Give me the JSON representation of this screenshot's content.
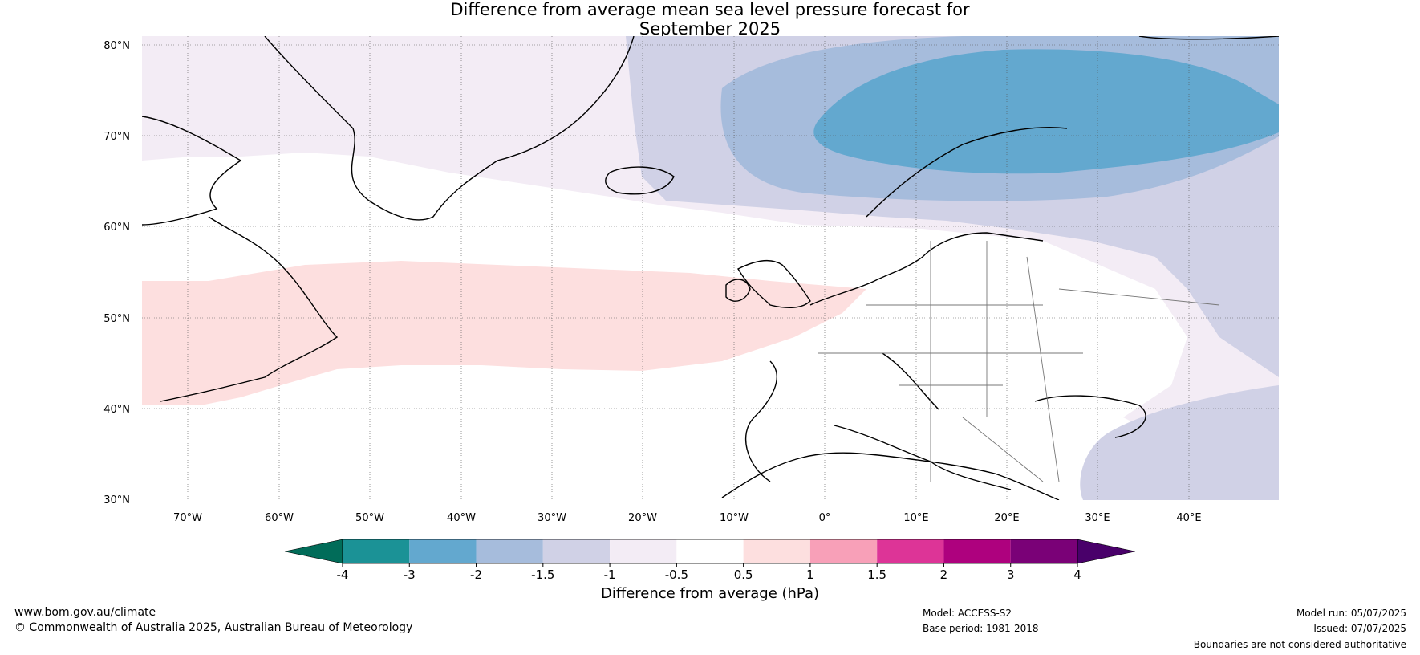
{
  "title": {
    "line1": "Difference from average mean sea level pressure forecast for",
    "line2": "September 2025"
  },
  "map": {
    "lat_labels": [
      "80°N",
      "70°N",
      "60°N",
      "50°N",
      "40°N",
      "30°N"
    ],
    "lon_labels": [
      "70°W",
      "60°W",
      "50°W",
      "40°W",
      "30°W",
      "20°W",
      "10°W",
      "0°",
      "10°E",
      "20°E",
      "30°E",
      "40°E"
    ]
  },
  "colorbar": {
    "label": "Difference from average (hPa)",
    "tick_labels": [
      "-4",
      "-3",
      "-2",
      "-1.5",
      "-1",
      "-0.5",
      "0.5",
      "1",
      "1.5",
      "2",
      "3",
      "4"
    ],
    "colors": [
      "#1b9296",
      "#63a8cf",
      "#a6bcdc",
      "#d0d1e6",
      "#f3ecf5",
      "#ffffff",
      "#fddfdf",
      "#f8a0b8",
      "#dd3497",
      "#ae017e",
      "#7a0177"
    ],
    "under_color": "#016c59",
    "over_color": "#49006a"
  },
  "footer": {
    "website": "www.bom.gov.au/climate",
    "copyright": "© Commonwealth of Australia 2025, Australian Bureau of Meteorology",
    "model": "Model: ACCESS-S2",
    "base_period": "Base period: 1981-2018",
    "model_run": "Model run: 05/07/2025",
    "issued": "Issued: 07/07/2025",
    "disclaimer": "Boundaries are not considered authoritative"
  }
}
